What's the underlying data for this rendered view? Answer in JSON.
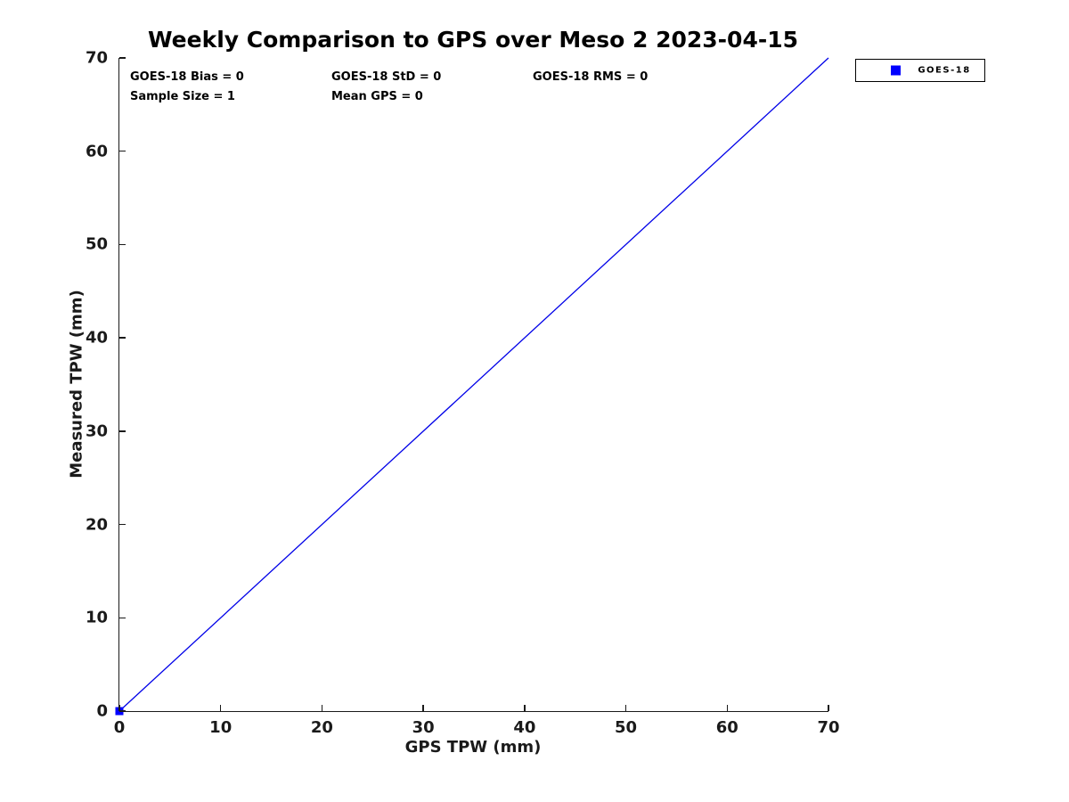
{
  "title": "Weekly Comparison to GPS over Meso 2 2023-04-15",
  "stats": {
    "bias": "GOES-18 Bias = 0",
    "std": "GOES-18 StD = 0",
    "rms": "GOES-18 RMS = 0",
    "sample_size": "Sample Size = 1",
    "mean_gps": "Mean GPS = 0"
  },
  "legend": {
    "label": "GOES-18",
    "marker_color": "#0000ff"
  },
  "colors": {
    "line": "#0000e8",
    "marker": "#0000ff",
    "axis": "#1a1a1a"
  },
  "chart_data": {
    "type": "scatter",
    "title": "Weekly Comparison to GPS over Meso 2 2023-04-15",
    "xlabel": "GPS TPW (mm)",
    "ylabel": "Measured TPW (mm)",
    "xlim": [
      0,
      70
    ],
    "ylim": [
      0,
      70
    ],
    "xticks": [
      0,
      10,
      20,
      30,
      40,
      50,
      60,
      70
    ],
    "yticks": [
      0,
      10,
      20,
      30,
      40,
      50,
      60,
      70
    ],
    "grid": false,
    "box": false,
    "legend_position": "upper-right-outside",
    "series": [
      {
        "name": "GOES-18",
        "marker": "square",
        "color": "#0000ff",
        "points": [
          [
            0,
            0
          ]
        ]
      }
    ],
    "reference_line": {
      "meaning": "1:1 identity line",
      "from": [
        0,
        0
      ],
      "to": [
        70,
        70
      ],
      "color": "#0000e8"
    },
    "annotations": [
      "GOES-18 Bias = 0",
      "GOES-18 StD = 0",
      "GOES-18 RMS = 0",
      "Sample Size = 1",
      "Mean GPS = 0"
    ]
  }
}
